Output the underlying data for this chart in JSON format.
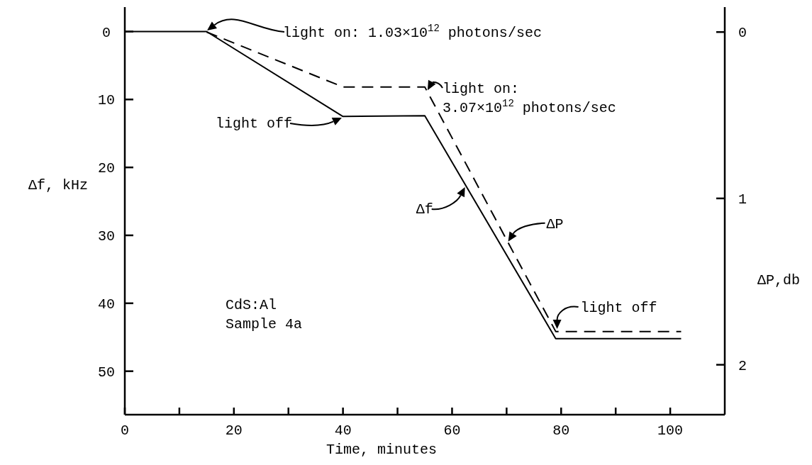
{
  "chart_data": {
    "type": "line",
    "xlabel": "Time, minutes",
    "ylabel": "Δf, kHz",
    "y2label": "ΔP,db",
    "xlim": [
      0,
      110
    ],
    "ylim": [
      56.4,
      -3.6
    ],
    "y2lim": [
      2.3,
      -0.15
    ],
    "xticks": [
      0,
      {
        "value": 10,
        "label": null
      },
      20,
      {
        "value": 30,
        "label": null
      },
      40,
      {
        "value": 50,
        "label": null
      },
      60,
      {
        "value": 70,
        "label": null
      },
      80,
      {
        "value": 90,
        "label": null
      },
      100
    ],
    "yticks": [
      0,
      10,
      20,
      30,
      40,
      50
    ],
    "y2ticks": [
      0,
      1,
      2
    ],
    "grid": false,
    "series": [
      {
        "color": "#000000",
        "line_style": "solid",
        "x": [
          0,
          15,
          40,
          55,
          79,
          102
        ],
        "values": [
          0,
          0,
          12.5,
          12.4,
          45.2,
          45.2
        ]
      },
      {
        "color": "#000000",
        "line_style": "dashed",
        "axis": "y2",
        "x": [
          15,
          40,
          55,
          79,
          102
        ],
        "values": [
          0,
          0.33,
          0.33,
          1.8,
          1.8
        ]
      }
    ],
    "annotations": [
      "light on: 1.03×10$^{12}$ photons/sec",
      "light off",
      {
        "text": "light on:\n3.07×10$^{12}$ photons/sec",
        "x": 55,
        "y": 8.1
      },
      {
        "text": "Δf",
        "x": 62.5,
        "y": 22.8
      },
      {
        "text": "ΔP",
        "x": 69.9,
        "y": 30.5
      },
      {
        "text": "light off",
        "x": 79,
        "y": 44.2
      },
      "CdS:Al\nSample 4a"
    ]
  }
}
